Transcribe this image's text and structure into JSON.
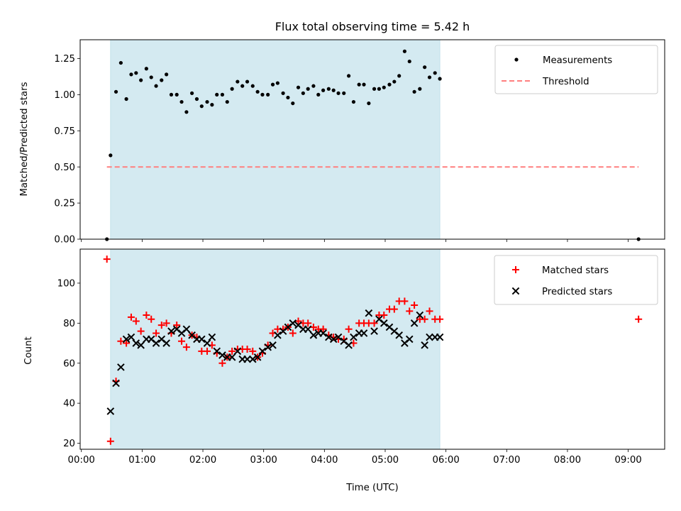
{
  "chart_data": [
    {
      "type": "scatter",
      "title": "Flux total observing time = 5.42 h",
      "ylabel": "Matched/Predicted stars",
      "xlabel": "",
      "xlim": [
        -0.02,
        9.6
      ],
      "ylim": [
        0,
        1.38
      ],
      "yticks": [
        "0.00",
        "0.25",
        "0.50",
        "0.75",
        "1.00",
        "1.25"
      ],
      "ytick_values": [
        0,
        0.25,
        0.5,
        0.75,
        1.0,
        1.25
      ],
      "shaded_span": [
        0.48,
        5.9
      ],
      "shaded_color": "#d4eaf1",
      "legend": "top-right",
      "series": [
        {
          "name": "Measurements",
          "marker": "dot",
          "color": "#000000",
          "x": [
            0.42,
            0.48,
            0.57,
            0.65,
            0.74,
            0.82,
            0.9,
            0.98,
            1.07,
            1.15,
            1.23,
            1.32,
            1.4,
            1.48,
            1.57,
            1.65,
            1.73,
            1.82,
            1.9,
            1.98,
            2.07,
            2.15,
            2.23,
            2.32,
            2.4,
            2.48,
            2.57,
            2.65,
            2.73,
            2.82,
            2.9,
            2.98,
            3.07,
            3.15,
            3.23,
            3.32,
            3.4,
            3.48,
            3.57,
            3.65,
            3.73,
            3.82,
            3.9,
            3.98,
            4.07,
            4.15,
            4.23,
            4.32,
            4.4,
            4.48,
            4.57,
            4.65,
            4.73,
            4.82,
            4.9,
            4.98,
            5.07,
            5.15,
            5.23,
            5.32,
            5.4,
            5.48,
            5.57,
            5.65,
            5.73,
            5.82,
            5.9,
            9.17
          ],
          "y": [
            0.0,
            0.58,
            1.02,
            1.22,
            0.97,
            1.14,
            1.15,
            1.1,
            1.18,
            1.12,
            1.06,
            1.1,
            1.14,
            1.0,
            1.0,
            0.95,
            0.88,
            1.01,
            0.97,
            0.92,
            0.95,
            0.93,
            1.0,
            1.0,
            0.95,
            1.04,
            1.09,
            1.06,
            1.09,
            1.06,
            1.02,
            1.0,
            1.0,
            1.07,
            1.08,
            1.01,
            0.98,
            0.94,
            1.05,
            1.01,
            1.04,
            1.06,
            1.0,
            1.03,
            1.04,
            1.03,
            1.01,
            1.01,
            1.13,
            0.95,
            1.07,
            1.07,
            0.94,
            1.04,
            1.04,
            1.05,
            1.07,
            1.09,
            1.13,
            1.3,
            1.23,
            1.02,
            1.04,
            1.19,
            1.12,
            1.15,
            1.11,
            0.0
          ]
        },
        {
          "name": "Threshold",
          "marker": "dashed-line",
          "color": "#ff7f7f",
          "x": [
            0.42,
            9.17
          ],
          "y": [
            0.5,
            0.5
          ]
        }
      ]
    },
    {
      "type": "scatter",
      "title": "",
      "ylabel": "Count",
      "xlabel": "Time (UTC)",
      "xlim": [
        -0.02,
        9.6
      ],
      "ylim": [
        17,
        117
      ],
      "yticks": [
        "20",
        "40",
        "60",
        "80",
        "100"
      ],
      "ytick_values": [
        20,
        40,
        60,
        80,
        100
      ],
      "xticks": [
        "00:00",
        "01:00",
        "02:00",
        "03:00",
        "04:00",
        "05:00",
        "06:00",
        "07:00",
        "08:00",
        "09:00"
      ],
      "xtick_values": [
        0,
        1,
        2,
        3,
        4,
        5,
        6,
        7,
        8,
        9
      ],
      "shaded_span": [
        0.48,
        5.9
      ],
      "shaded_color": "#d4eaf1",
      "legend": "top-right",
      "series": [
        {
          "name": "Matched stars",
          "marker": "plus",
          "color": "#ff0000",
          "x": [
            0.42,
            0.48,
            0.57,
            0.65,
            0.74,
            0.82,
            0.9,
            0.98,
            1.07,
            1.15,
            1.23,
            1.32,
            1.4,
            1.48,
            1.57,
            1.65,
            1.73,
            1.82,
            1.9,
            1.98,
            2.07,
            2.15,
            2.23,
            2.32,
            2.4,
            2.48,
            2.57,
            2.65,
            2.73,
            2.82,
            2.9,
            2.98,
            3.07,
            3.15,
            3.23,
            3.32,
            3.4,
            3.48,
            3.57,
            3.65,
            3.73,
            3.82,
            3.9,
            3.98,
            4.07,
            4.15,
            4.23,
            4.32,
            4.4,
            4.48,
            4.57,
            4.65,
            4.73,
            4.82,
            4.9,
            4.98,
            5.07,
            5.15,
            5.23,
            5.32,
            5.4,
            5.48,
            5.57,
            5.65,
            5.73,
            5.82,
            5.9,
            9.17
          ],
          "y": [
            112,
            21,
            51,
            71,
            70,
            83,
            81,
            76,
            84,
            82,
            75,
            79,
            80,
            75,
            79,
            71,
            68,
            74,
            73,
            66,
            66,
            69,
            65,
            60,
            63,
            66,
            67,
            67,
            67,
            66,
            63,
            65,
            69,
            75,
            77,
            77,
            78,
            75,
            81,
            80,
            80,
            78,
            77,
            77,
            74,
            73,
            72,
            72,
            77,
            70,
            80,
            80,
            80,
            80,
            84,
            84,
            87,
            87,
            91,
            91,
            86,
            89,
            82,
            82,
            86,
            82,
            82,
            82
          ]
        },
        {
          "name": "Predicted stars",
          "marker": "x",
          "color": "#000000",
          "x": [
            0.48,
            0.57,
            0.65,
            0.74,
            0.82,
            0.9,
            0.98,
            1.07,
            1.15,
            1.23,
            1.32,
            1.4,
            1.48,
            1.57,
            1.65,
            1.73,
            1.82,
            1.9,
            1.98,
            2.07,
            2.15,
            2.23,
            2.32,
            2.4,
            2.48,
            2.57,
            2.65,
            2.73,
            2.82,
            2.9,
            2.98,
            3.07,
            3.15,
            3.23,
            3.32,
            3.4,
            3.48,
            3.57,
            3.65,
            3.73,
            3.82,
            3.9,
            3.98,
            4.07,
            4.15,
            4.23,
            4.32,
            4.4,
            4.48,
            4.57,
            4.65,
            4.73,
            4.82,
            4.9,
            4.98,
            5.07,
            5.15,
            5.23,
            5.32,
            5.4,
            5.48,
            5.57,
            5.65,
            5.73,
            5.82,
            5.9
          ],
          "y": [
            36,
            50,
            58,
            72,
            73,
            70,
            69,
            72,
            72,
            70,
            72,
            70,
            76,
            77,
            75,
            77,
            74,
            72,
            72,
            70,
            73,
            66,
            64,
            63,
            63,
            66,
            62,
            62,
            62,
            63,
            66,
            68,
            69,
            74,
            76,
            78,
            80,
            79,
            77,
            77,
            74,
            75,
            75,
            73,
            72,
            73,
            71,
            69,
            73,
            75,
            75,
            85,
            76,
            82,
            80,
            78,
            76,
            74,
            70,
            72,
            80,
            84,
            69,
            73,
            73,
            73
          ]
        }
      ]
    }
  ]
}
